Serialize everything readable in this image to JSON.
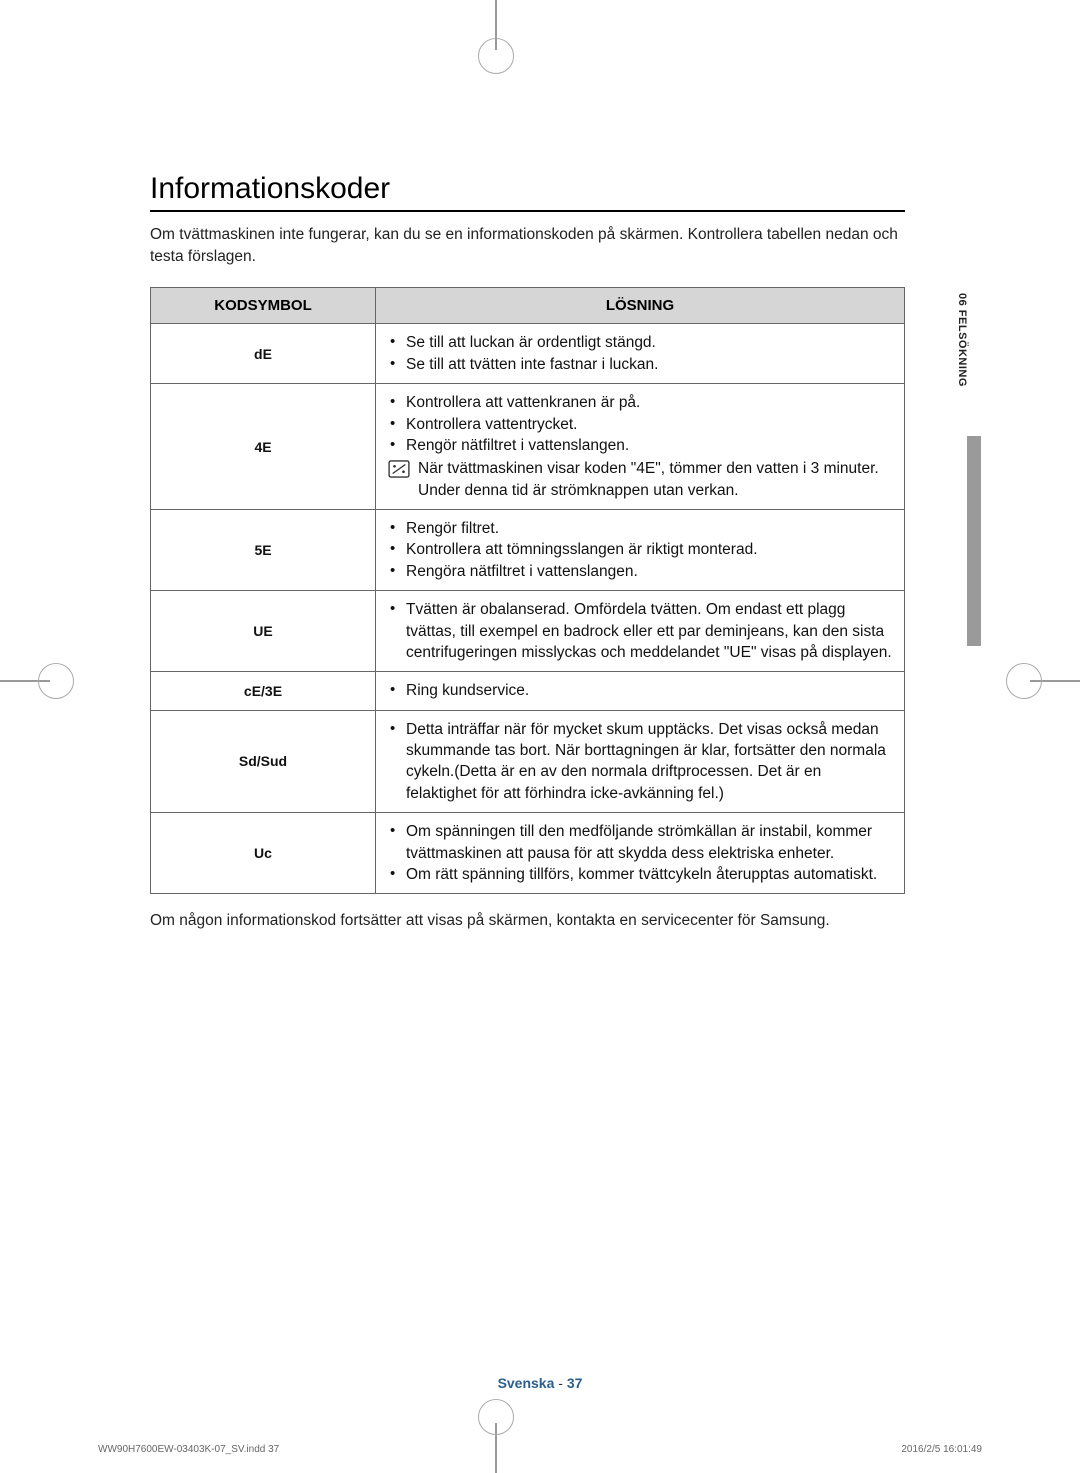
{
  "heading": "Informationskoder",
  "intro": "Om tvättmaskinen inte fungerar, kan du se en informationskoden på skärmen. Kontrollera tabellen nedan och testa förslagen.",
  "table": {
    "headers": {
      "code": "KODSYMBOL",
      "solution": "LÖSNING"
    },
    "rows": [
      {
        "code": "dE",
        "items": [
          "Se till att luckan är ordentligt stängd.",
          "Se till att tvätten inte fastnar i luckan."
        ]
      },
      {
        "code": "4E",
        "items": [
          "Kontrollera att vattenkranen är på.",
          "Kontrollera vattentrycket.",
          "Rengör nätfiltret i vattenslangen."
        ],
        "note": "När tvättmaskinen visar koden \"4E\", tömmer den vatten i 3 minuter. Under denna tid är strömknappen utan verkan."
      },
      {
        "code": "5E",
        "items": [
          "Rengör filtret.",
          "Kontrollera att tömningsslangen är riktigt monterad.",
          "Rengöra nätfiltret i vattenslangen."
        ]
      },
      {
        "code": "UE",
        "items": [
          "Tvätten är obalanserad. Omfördela tvätten. Om endast ett plagg tvättas, till exempel en badrock eller ett par deminjeans, kan den sista centrifugeringen misslyckas och meddelandet \"UE\" visas på displayen."
        ]
      },
      {
        "code": "cE/3E",
        "items": [
          "Ring kundservice."
        ]
      },
      {
        "code": "Sd/Sud",
        "items": [
          "Detta inträffar när för mycket skum upptäcks. Det visas också medan skummande tas bort. När borttagningen är klar, fortsätter den normala cykeln.(Detta är en av den normala driftprocessen. Det är en felaktighet för att förhindra icke-avkänning fel.)"
        ]
      },
      {
        "code": "Uc",
        "items": [
          "Om spänningen till den medföljande strömkällan är instabil, kommer tvättmaskinen att pausa för att skydda dess elektriska enheter.",
          "Om rätt spänning tillförs, kommer tvättcykeln återupptas automatiskt."
        ]
      }
    ]
  },
  "outro": "Om någon informationskod fortsätter att visas på skärmen, kontakta en servicecenter för Samsung.",
  "sideLabel": "06  FELSÖKNING",
  "footer": {
    "lang": "Svenska",
    "sep": " - ",
    "pageNum": "37"
  },
  "printInfo": {
    "file": "WW90H7600EW-03403K-07_SV.indd   37",
    "date": "2016/2/5   16:01:49"
  }
}
